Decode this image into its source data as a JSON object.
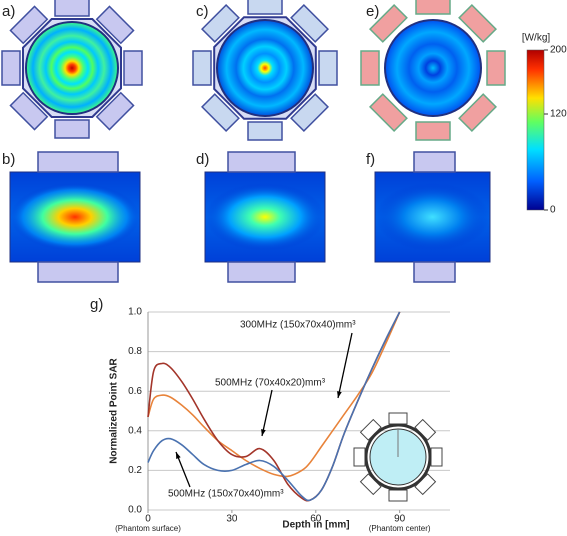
{
  "panel_labels": [
    "a)",
    "b)",
    "c)",
    "d)",
    "e)",
    "f)"
  ],
  "colorbar": {
    "label": "[W/kg]",
    "lim": [
      0,
      200
    ],
    "ticks": [
      200,
      120,
      0
    ]
  },
  "chart_data": {
    "type": "line",
    "panel_label": "g)",
    "xlabel": "Depth in [mm]",
    "ylabel": "Normalized Point SAR",
    "xlim": [
      0,
      108
    ],
    "xticks": [
      0,
      30,
      60,
      90
    ],
    "xtick_notes": [
      {
        "value": 0,
        "label": "(Phantom surface)"
      },
      {
        "value": 90,
        "label": "(Phantom center)"
      }
    ],
    "ylim": [
      0,
      1
    ],
    "yticks": [
      {
        "value": 0,
        "label": "0.0"
      },
      0.2,
      0.4,
      0.6,
      0.8,
      {
        "value": 1,
        "label": "1.0"
      }
    ],
    "grid": true,
    "x": [
      0,
      2,
      5,
      8,
      12,
      16,
      20,
      25,
      30,
      35,
      40,
      45,
      50,
      55,
      58,
      62,
      66,
      70,
      75,
      80,
      85,
      90
    ],
    "series": [
      {
        "name": "300MHz (150x70x40)mm³",
        "color": "#e8833a",
        "values": [
          0.47,
          0.56,
          0.58,
          0.57,
          0.53,
          0.48,
          0.42,
          0.35,
          0.3,
          0.25,
          0.21,
          0.18,
          0.17,
          0.2,
          0.24,
          0.32,
          0.4,
          0.48,
          0.58,
          0.69,
          0.84,
          1.0
        ]
      },
      {
        "name": "500MHz (70x40x20)mm³",
        "color": "#a3352a",
        "values": [
          0.47,
          0.7,
          0.74,
          0.72,
          0.65,
          0.56,
          0.46,
          0.35,
          0.28,
          0.27,
          0.31,
          0.25,
          0.13,
          0.06,
          0.05,
          0.1,
          0.22,
          0.38,
          0.55,
          0.71,
          0.86,
          1.0
        ]
      },
      {
        "name": "500MHz (150x70x40)mm³",
        "color": "#4a72b0",
        "values": [
          0.24,
          0.3,
          0.35,
          0.36,
          0.33,
          0.28,
          0.23,
          0.2,
          0.2,
          0.23,
          0.25,
          0.22,
          0.15,
          0.07,
          0.05,
          0.1,
          0.22,
          0.38,
          0.55,
          0.71,
          0.86,
          1.0
        ]
      }
    ]
  }
}
